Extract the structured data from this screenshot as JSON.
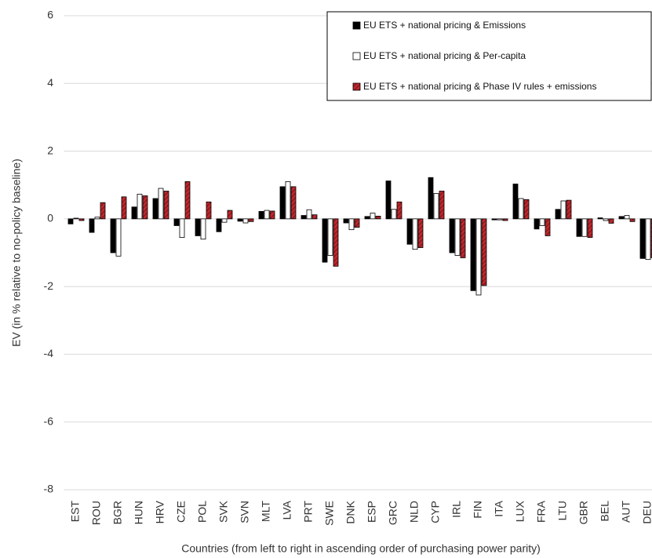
{
  "chart_data": {
    "type": "bar",
    "x_label": "Countries (from left to right in ascending order of purchasing power parity)",
    "y_label": "EV (in % relative to no-policy baseline)",
    "categories": [
      "EST",
      "ROU",
      "BGR",
      "HUN",
      "HRV",
      "CZE",
      "POL",
      "SVK",
      "SVN",
      "MLT",
      "LVA",
      "PRT",
      "SWE",
      "DNK",
      "ESP",
      "GRC",
      "NLD",
      "CYP",
      "IRL",
      "FIN",
      "ITA",
      "LUX",
      "FRA",
      "LTU",
      "GBR",
      "BEL",
      "AUT",
      "DEU"
    ],
    "series": [
      {
        "name": "EU ETS + national pricing & Emissions",
        "color": "#000000",
        "values": [
          -0.15,
          -0.4,
          -1.0,
          0.35,
          0.6,
          -0.2,
          -0.5,
          -0.38,
          -0.07,
          0.22,
          0.95,
          0.1,
          -1.28,
          -0.12,
          0.07,
          1.12,
          -0.75,
          1.22,
          -1.0,
          -2.12,
          -0.03,
          1.03,
          -0.3,
          0.28,
          -0.52,
          0.03,
          0.07,
          -1.17
        ]
      },
      {
        "name": "EU ETS + national pricing & Per-capita",
        "color": "#ffffff",
        "values": [
          0.02,
          0.05,
          -1.1,
          0.73,
          0.9,
          -0.55,
          -0.6,
          -0.1,
          -0.12,
          0.25,
          1.1,
          0.27,
          -1.08,
          -0.32,
          0.17,
          0.28,
          -0.9,
          0.75,
          -1.08,
          -2.25,
          -0.03,
          0.6,
          -0.2,
          0.53,
          -0.52,
          -0.05,
          0.1,
          -1.2
        ]
      },
      {
        "name": "EU ETS + national pricing & Phase IV rules + emissions",
        "color": "#c0272d",
        "values": [
          -0.05,
          0.48,
          0.65,
          0.68,
          0.82,
          1.1,
          0.5,
          0.25,
          -0.08,
          0.23,
          0.95,
          0.12,
          -1.4,
          -0.25,
          0.08,
          0.5,
          -0.85,
          0.82,
          -1.15,
          -1.97,
          -0.05,
          0.57,
          -0.5,
          0.55,
          -0.55,
          -0.13,
          -0.08,
          -1.15
        ]
      }
    ],
    "ylim": [
      -8,
      6
    ],
    "yticks": [
      -8,
      -6,
      -4,
      -2,
      0,
      2,
      4,
      6
    ],
    "grid": true,
    "legend": "top-right"
  }
}
